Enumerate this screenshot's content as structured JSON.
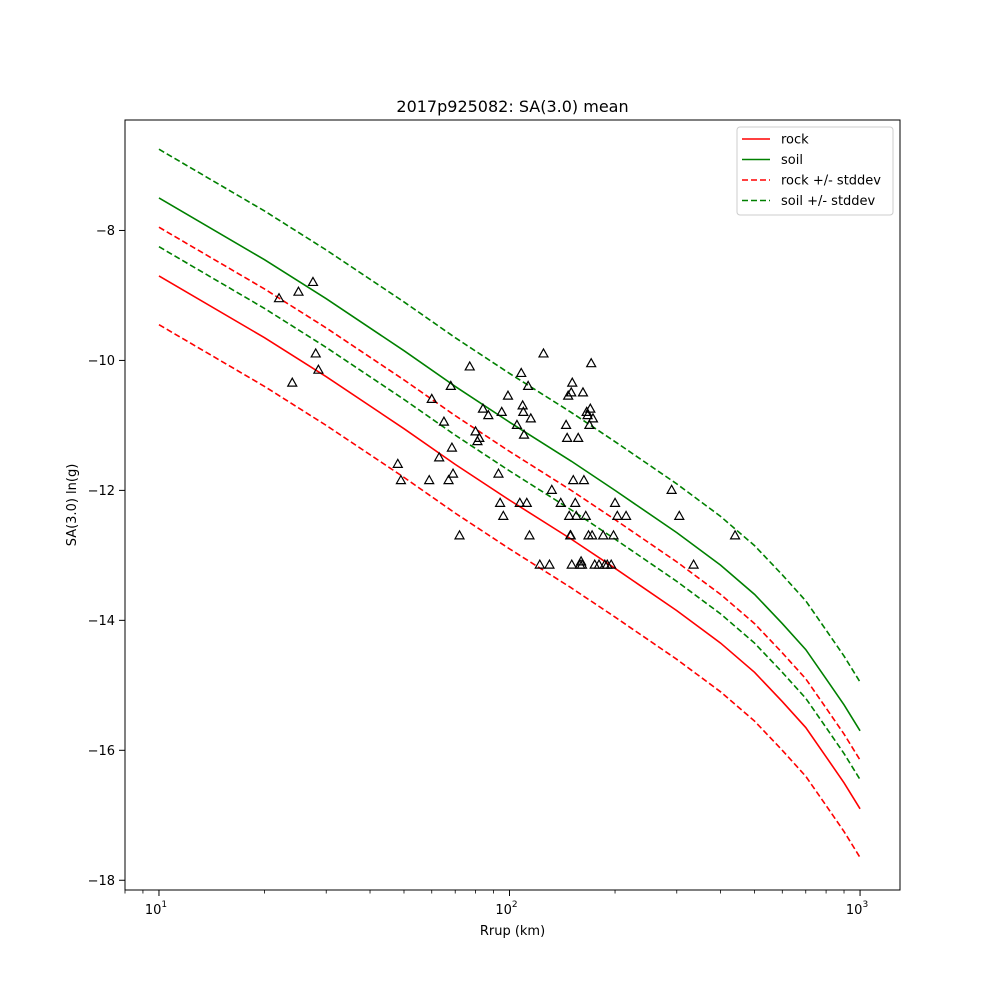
{
  "chart_data": {
    "type": "line",
    "title": "2017p925082: SA(3.0) mean",
    "xlabel": "Rrup (km)",
    "ylabel": "SA(3.0) ln(g)",
    "xscale": "log",
    "xlim": [
      8,
      1300
    ],
    "ylim": [
      -18.15,
      -6.3
    ],
    "grid": false,
    "legend_position": "top-right",
    "x_ticks": [
      {
        "value": 10,
        "base": "10",
        "exp": "1"
      },
      {
        "value": 100,
        "base": "10",
        "exp": "2"
      },
      {
        "value": 1000,
        "base": "10",
        "exp": "3"
      }
    ],
    "y_ticks": [
      -18,
      -16,
      -14,
      -12,
      -10,
      -8
    ],
    "series": [
      {
        "name": "rock",
        "color": "#ff0000",
        "style": "solid",
        "x": [
          10,
          20,
          30,
          50,
          70,
          100,
          150,
          200,
          300,
          400,
          500,
          600,
          700,
          800,
          900,
          1000
        ],
        "y": [
          -8.7,
          -9.65,
          -10.25,
          -11.05,
          -11.6,
          -12.15,
          -12.75,
          -13.2,
          -13.85,
          -14.35,
          -14.8,
          -15.25,
          -15.65,
          -16.1,
          -16.5,
          -16.9
        ]
      },
      {
        "name": "soil",
        "color": "#008000",
        "style": "solid",
        "x": [
          10,
          20,
          30,
          50,
          70,
          100,
          150,
          200,
          300,
          400,
          500,
          600,
          700,
          800,
          900,
          1000
        ],
        "y": [
          -7.5,
          -8.45,
          -9.05,
          -9.85,
          -10.4,
          -10.95,
          -11.55,
          -12.0,
          -12.65,
          -13.15,
          -13.6,
          -14.05,
          -14.45,
          -14.9,
          -15.3,
          -15.7
        ]
      },
      {
        "name": "rock +/- stddev",
        "color": "#ff0000",
        "style": "dashed",
        "x": [
          10,
          20,
          30,
          50,
          70,
          100,
          150,
          200,
          300,
          400,
          500,
          600,
          700,
          800,
          900,
          1000
        ],
        "y": [
          -7.95,
          -8.9,
          -9.5,
          -10.3,
          -10.85,
          -11.4,
          -12.0,
          -12.45,
          -13.1,
          -13.6,
          -14.05,
          -14.5,
          -14.9,
          -15.35,
          -15.75,
          -16.15
        ]
      },
      {
        "name": "",
        "color": "#ff0000",
        "style": "dashed",
        "x": [
          10,
          20,
          30,
          50,
          70,
          100,
          150,
          200,
          300,
          400,
          500,
          600,
          700,
          800,
          900,
          1000
        ],
        "y": [
          -9.45,
          -10.4,
          -11.0,
          -11.8,
          -12.35,
          -12.9,
          -13.5,
          -13.95,
          -14.6,
          -15.1,
          -15.55,
          -16.0,
          -16.4,
          -16.85,
          -17.25,
          -17.65
        ]
      },
      {
        "name": "soil +/- stddev",
        "color": "#008000",
        "style": "dashed",
        "x": [
          10,
          20,
          30,
          50,
          70,
          100,
          150,
          200,
          300,
          400,
          500,
          600,
          700,
          800,
          900,
          1000
        ],
        "y": [
          -6.75,
          -7.7,
          -8.3,
          -9.1,
          -9.65,
          -10.2,
          -10.8,
          -11.25,
          -11.9,
          -12.4,
          -12.85,
          -13.3,
          -13.7,
          -14.15,
          -14.55,
          -14.95
        ]
      },
      {
        "name": "",
        "color": "#008000",
        "style": "dashed",
        "x": [
          10,
          20,
          30,
          50,
          70,
          100,
          150,
          200,
          300,
          400,
          500,
          600,
          700,
          800,
          900,
          1000
        ],
        "y": [
          -8.25,
          -9.2,
          -9.8,
          -10.6,
          -11.15,
          -11.7,
          -12.3,
          -12.75,
          -13.4,
          -13.9,
          -14.35,
          -14.8,
          -15.2,
          -15.65,
          -16.05,
          -16.45
        ]
      }
    ],
    "observations": {
      "marker": "triangle",
      "color": "#000000",
      "points": [
        [
          22,
          -9.05
        ],
        [
          24,
          -10.35
        ],
        [
          25,
          -8.95
        ],
        [
          27.5,
          -8.8
        ],
        [
          28,
          -9.9
        ],
        [
          28.5,
          -10.15
        ],
        [
          48,
          -11.6
        ],
        [
          49,
          -11.85
        ],
        [
          59,
          -11.85
        ],
        [
          60,
          -10.6
        ],
        [
          63,
          -11.5
        ],
        [
          65,
          -10.95
        ],
        [
          67,
          -11.85
        ],
        [
          68,
          -10.4
        ],
        [
          68.5,
          -11.35
        ],
        [
          69,
          -11.75
        ],
        [
          72,
          -12.7
        ],
        [
          77,
          -10.1
        ],
        [
          80,
          -11.1
        ],
        [
          81,
          -11.25
        ],
        [
          82,
          -11.2
        ],
        [
          84,
          -10.75
        ],
        [
          87,
          -10.85
        ],
        [
          93,
          -11.75
        ],
        [
          94,
          -12.2
        ],
        [
          95,
          -10.8
        ],
        [
          96,
          -12.4
        ],
        [
          99,
          -10.55
        ],
        [
          105,
          -11.0
        ],
        [
          107,
          -12.2
        ],
        [
          108,
          -10.2
        ],
        [
          109,
          -10.7
        ],
        [
          109.5,
          -10.8
        ],
        [
          110,
          -11.15
        ],
        [
          112,
          -12.2
        ],
        [
          113,
          -10.4
        ],
        [
          114,
          -12.7
        ],
        [
          115,
          -10.9
        ],
        [
          122,
          -13.15
        ],
        [
          125,
          -9.9
        ],
        [
          130,
          -13.15
        ],
        [
          132,
          -12.0
        ],
        [
          140,
          -12.2
        ],
        [
          145,
          -11.0
        ],
        [
          146,
          -11.2
        ],
        [
          147,
          -10.55
        ],
        [
          148,
          -12.4
        ],
        [
          149,
          -12.7
        ],
        [
          149.5,
          -12.7
        ],
        [
          150,
          -10.5
        ],
        [
          150.5,
          -13.15
        ],
        [
          151,
          -10.35
        ],
        [
          152,
          -11.85
        ],
        [
          154,
          -12.2
        ],
        [
          155,
          -12.4
        ],
        [
          157,
          -11.2
        ],
        [
          159,
          -13.15
        ],
        [
          160,
          -13.1
        ],
        [
          161,
          -13.15
        ],
        [
          162,
          -10.5
        ],
        [
          163,
          -11.85
        ],
        [
          165,
          -12.4
        ],
        [
          166,
          -10.8
        ],
        [
          167,
          -10.85
        ],
        [
          168,
          -12.7
        ],
        [
          169,
          -11.0
        ],
        [
          170,
          -10.75
        ],
        [
          171,
          -10.05
        ],
        [
          172,
          -12.7
        ],
        [
          173,
          -10.9
        ],
        [
          175,
          -13.15
        ],
        [
          180,
          -13.15
        ],
        [
          185,
          -12.7
        ],
        [
          187,
          -13.15
        ],
        [
          190,
          -13.15
        ],
        [
          195,
          -13.15
        ],
        [
          198,
          -12.7
        ],
        [
          200,
          -12.2
        ],
        [
          203,
          -12.4
        ],
        [
          215,
          -12.4
        ],
        [
          290,
          -12.0
        ],
        [
          305,
          -12.4
        ],
        [
          335,
          -13.15
        ],
        [
          440,
          -12.7
        ]
      ]
    }
  }
}
